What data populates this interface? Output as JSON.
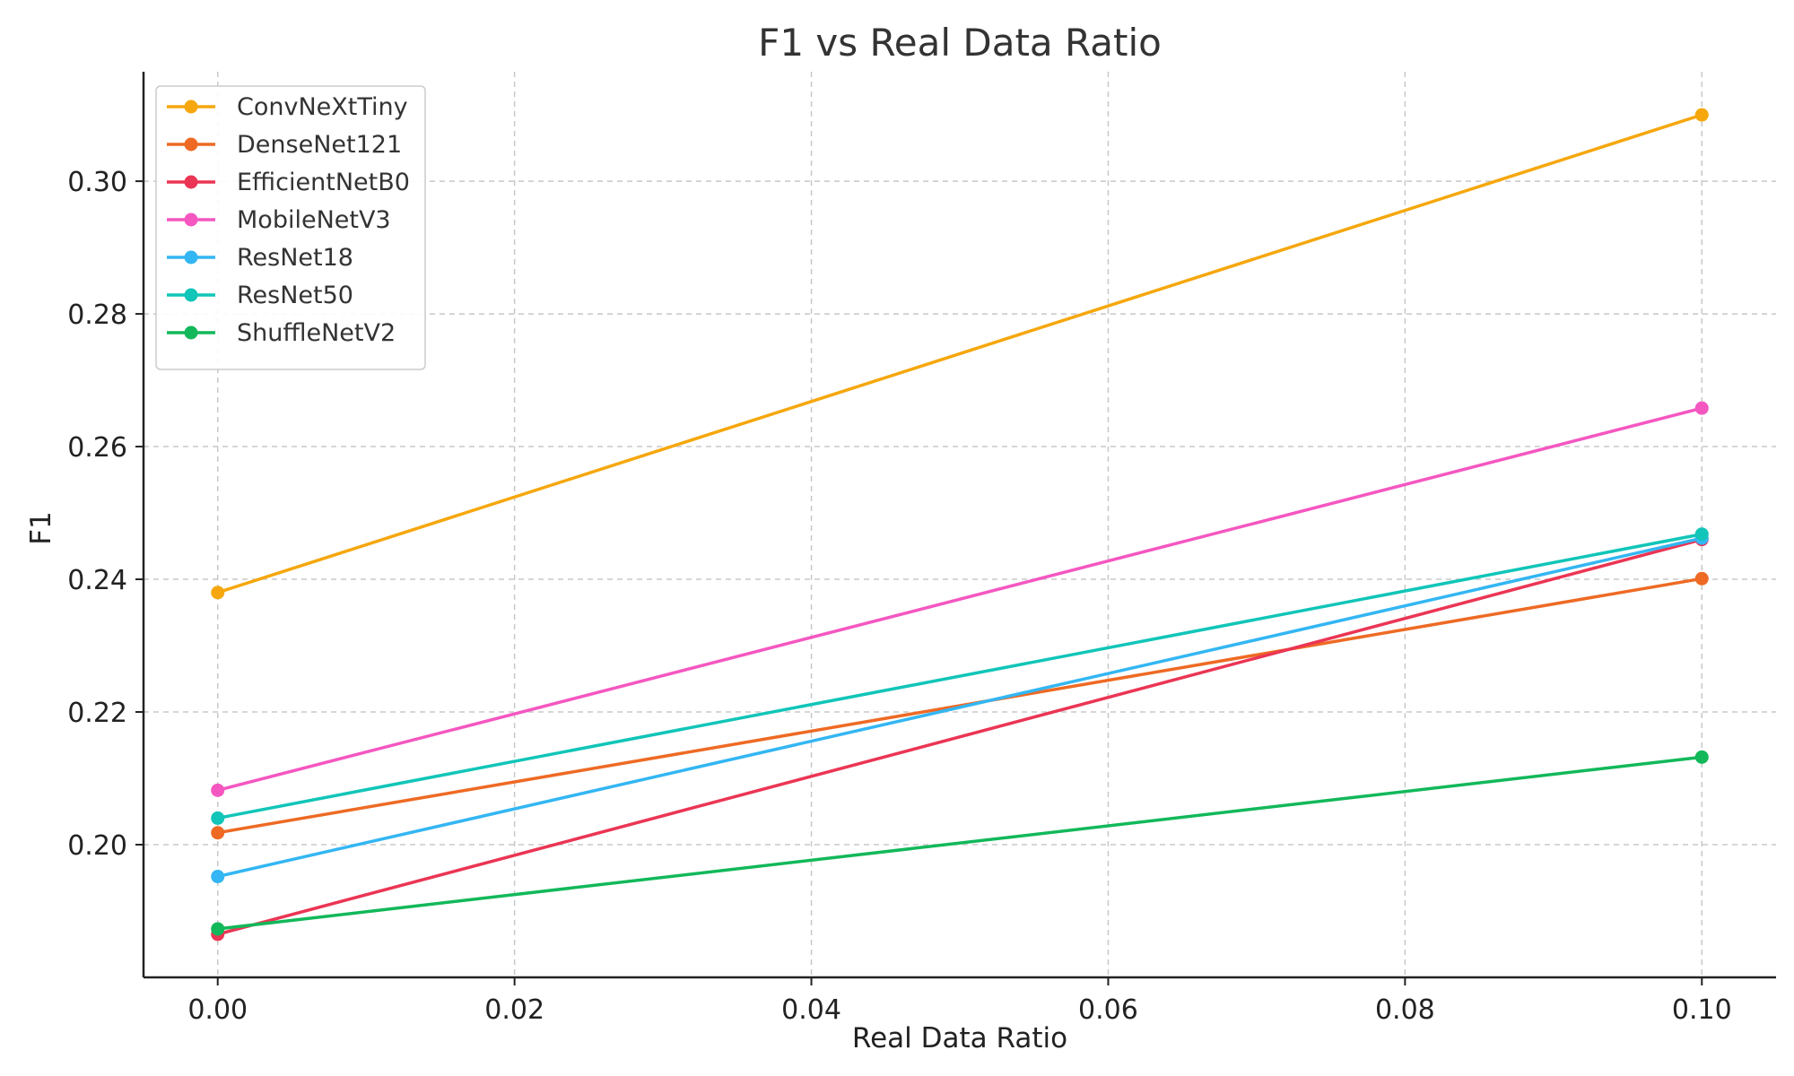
{
  "chart_data": {
    "type": "line",
    "title": "F1 vs Real Data Ratio",
    "xlabel": "Real Data Ratio",
    "ylabel": "F1",
    "x": [
      0.0,
      0.1
    ],
    "xlim": [
      -0.005,
      0.105
    ],
    "ylim": [
      0.18,
      0.3165
    ],
    "xticks": [
      0.0,
      0.02,
      0.04,
      0.06,
      0.08,
      0.1
    ],
    "xtick_labels": [
      "0.00",
      "0.02",
      "0.04",
      "0.06",
      "0.08",
      "0.10"
    ],
    "yticks": [
      0.2,
      0.22,
      0.24,
      0.26,
      0.28,
      0.3
    ],
    "ytick_labels": [
      "0.20",
      "0.22",
      "0.24",
      "0.26",
      "0.28",
      "0.30"
    ],
    "grid": true,
    "legend_position": "top-left",
    "series": [
      {
        "name": "ConvNeXtTiny",
        "color": "#F5A70D",
        "values": [
          0.238,
          0.31
        ]
      },
      {
        "name": "DenseNet121",
        "color": "#EE6A24",
        "values": [
          0.2018,
          0.2401
        ]
      },
      {
        "name": "EfficientNetB0",
        "color": "#EB3554",
        "values": [
          0.1865,
          0.246
        ]
      },
      {
        "name": "MobileNetV3",
        "color": "#F457C0",
        "values": [
          0.2082,
          0.2658
        ]
      },
      {
        "name": "ResNet18",
        "color": "#33B6F3",
        "values": [
          0.1952,
          0.2462
        ]
      },
      {
        "name": "ResNet50",
        "color": "#11C5B8",
        "values": [
          0.204,
          0.2468
        ]
      },
      {
        "name": "ShuffleNetV2",
        "color": "#12B85A",
        "values": [
          0.1873,
          0.2132
        ]
      }
    ]
  }
}
